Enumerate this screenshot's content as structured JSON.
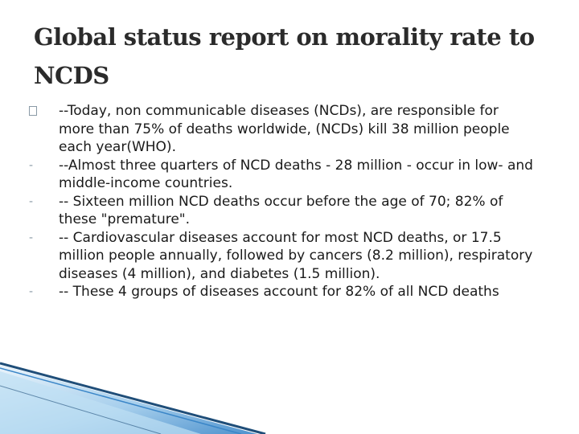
{
  "slide": {
    "title": "Global status report on morality rate to NCDS",
    "bullets": [
      {
        "marker": "box",
        "text": "--Today, non  communicable diseases (NCDs), are responsible for more than 75% of deaths worldwide, (NCDs) kill 38 million people each year(WHO)."
      },
      {
        "marker": "-",
        "text": "--Almost three quarters of NCD deaths - 28 million - occur in low- and middle-income countries."
      },
      {
        "marker": "-",
        "text": "-- Sixteen million NCD deaths occur before the age of 70; 82% of these \"premature\"."
      },
      {
        "marker": "-",
        "text": "-- Cardiovascular diseases account for most NCD deaths, or 17.5 million people annually, followed by cancers (8.2 million), respiratory diseases (4 million), and diabetes (1.5 million)."
      },
      {
        "marker": "-",
        "text": "-- These 4 groups of diseases account for 82% of all NCD deaths"
      }
    ]
  },
  "theme": {
    "decor_dark": "#1f4e79",
    "decor_mid": "#3a86c8",
    "decor_light": "#9cc9ea"
  }
}
